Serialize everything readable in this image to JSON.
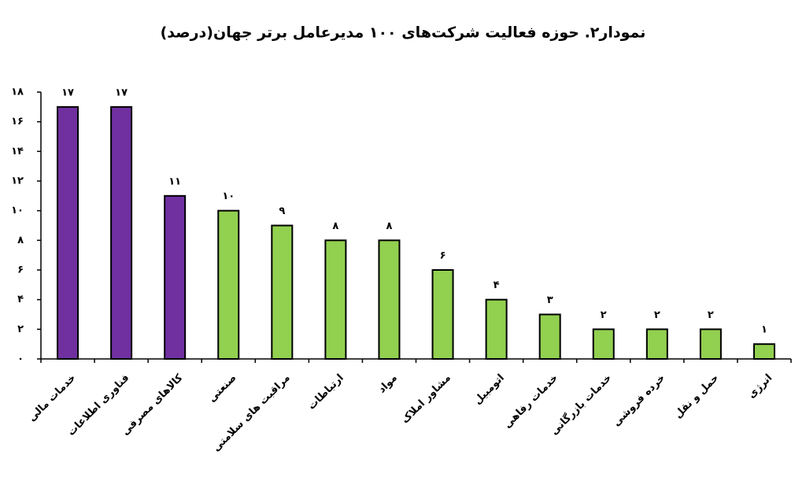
{
  "chart_data": {
    "type": "bar",
    "title": "نمودار۲. حوزه فعالیت شرکت‌های ۱۰۰ مدیرعامل برتر جهان(درصد)",
    "categories": [
      "خدمات مالی",
      "فناوری اطلاعات",
      "کالاهای مصرفی",
      "صنعتی",
      "مراقبت های سلامتی",
      "ارتباطات",
      "مواد",
      "مشاور املاک",
      "اتومبیل",
      "خدمات رفاهی",
      "خدمات بازرگانی",
      "خرده فروشی",
      "حمل و نقل",
      "انرژی"
    ],
    "values": [
      17,
      17,
      11,
      10,
      9,
      8,
      8,
      6,
      4,
      3,
      2,
      2,
      2,
      1
    ],
    "value_labels": [
      "۱۷",
      "۱۷",
      "۱۱",
      "۱۰",
      "۹",
      "۸",
      "۸",
      "۶",
      "۴",
      "۳",
      "۲",
      "۲",
      "۲",
      "۱"
    ],
    "colors": [
      "#7030a0",
      "#7030a0",
      "#7030a0",
      "#92d050",
      "#92d050",
      "#92d050",
      "#92d050",
      "#92d050",
      "#92d050",
      "#92d050",
      "#92d050",
      "#92d050",
      "#92d050",
      "#92d050"
    ],
    "ylim": [
      0,
      18
    ],
    "yticks": [
      {
        "value": 0,
        "label": "۰"
      },
      {
        "value": 2,
        "label": "۲"
      },
      {
        "value": 4,
        "label": "۴"
      },
      {
        "value": 6,
        "label": "۶"
      },
      {
        "value": 8,
        "label": "۸"
      },
      {
        "value": 10,
        "label": "۱۰"
      },
      {
        "value": 12,
        "label": "۱۲"
      },
      {
        "value": 14,
        "label": "۱۴"
      },
      {
        "value": 16,
        "label": "۱۶"
      },
      {
        "value": 18,
        "label": "۱۸"
      }
    ],
    "grid": false
  }
}
